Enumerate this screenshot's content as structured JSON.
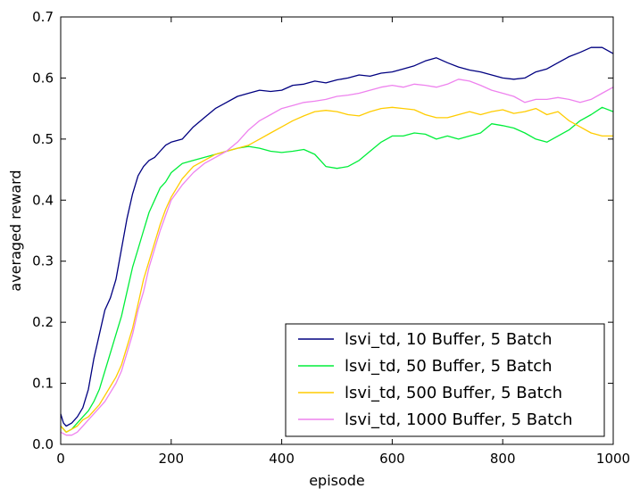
{
  "chart_data": {
    "type": "line",
    "xlabel": "episode",
    "ylabel": "averaged reward",
    "xlim": [
      0,
      1000
    ],
    "ylim": [
      0,
      0.7
    ],
    "xticks": [
      0,
      200,
      400,
      600,
      800,
      1000
    ],
    "yticks": [
      0.0,
      0.1,
      0.2,
      0.3,
      0.4,
      0.5,
      0.6,
      0.7
    ],
    "xtick_labels": [
      "0",
      "200",
      "400",
      "600",
      "800",
      "1000"
    ],
    "ytick_labels": [
      "0.0",
      "0.1",
      "0.2",
      "0.3",
      "0.4",
      "0.5",
      "0.6",
      "0.7"
    ],
    "grid": false,
    "legend_position": "lower-right",
    "series": [
      {
        "name": "lsvi_td, 10 Buffer, 5 Batch",
        "color": "#000080",
        "x": [
          0,
          5,
          10,
          20,
          30,
          40,
          50,
          60,
          70,
          80,
          90,
          100,
          110,
          120,
          130,
          140,
          150,
          160,
          170,
          180,
          190,
          200,
          220,
          240,
          260,
          280,
          300,
          320,
          340,
          360,
          380,
          400,
          420,
          440,
          460,
          480,
          500,
          520,
          540,
          560,
          580,
          600,
          620,
          640,
          660,
          680,
          700,
          720,
          740,
          760,
          780,
          800,
          820,
          840,
          860,
          880,
          900,
          920,
          940,
          960,
          980,
          1000
        ],
        "y": [
          0.05,
          0.035,
          0.03,
          0.035,
          0.045,
          0.06,
          0.09,
          0.14,
          0.18,
          0.22,
          0.24,
          0.27,
          0.32,
          0.37,
          0.41,
          0.44,
          0.455,
          0.465,
          0.47,
          0.48,
          0.49,
          0.495,
          0.5,
          0.52,
          0.535,
          0.55,
          0.56,
          0.57,
          0.575,
          0.58,
          0.578,
          0.58,
          0.588,
          0.59,
          0.595,
          0.592,
          0.597,
          0.6,
          0.605,
          0.603,
          0.608,
          0.61,
          0.615,
          0.62,
          0.628,
          0.633,
          0.625,
          0.618,
          0.613,
          0.61,
          0.605,
          0.6,
          0.598,
          0.6,
          0.61,
          0.615,
          0.625,
          0.635,
          0.642,
          0.65,
          0.65,
          0.64
        ]
      },
      {
        "name": "lsvi_td, 50 Buffer, 5 Batch",
        "color": "#00ee3a",
        "x": [
          0,
          10,
          20,
          30,
          40,
          50,
          60,
          70,
          80,
          90,
          100,
          110,
          120,
          130,
          140,
          150,
          160,
          170,
          180,
          190,
          200,
          220,
          240,
          260,
          280,
          300,
          320,
          340,
          360,
          380,
          400,
          420,
          440,
          460,
          480,
          500,
          520,
          540,
          560,
          580,
          600,
          620,
          640,
          660,
          680,
          700,
          720,
          740,
          760,
          780,
          800,
          820,
          840,
          860,
          880,
          900,
          920,
          940,
          960,
          980,
          1000
        ],
        "y": [
          0.03,
          0.02,
          0.025,
          0.035,
          0.045,
          0.055,
          0.07,
          0.09,
          0.12,
          0.15,
          0.18,
          0.21,
          0.25,
          0.29,
          0.32,
          0.35,
          0.38,
          0.4,
          0.42,
          0.43,
          0.445,
          0.46,
          0.465,
          0.47,
          0.475,
          0.48,
          0.485,
          0.488,
          0.485,
          0.48,
          0.478,
          0.48,
          0.483,
          0.475,
          0.455,
          0.452,
          0.455,
          0.465,
          0.48,
          0.495,
          0.505,
          0.505,
          0.51,
          0.508,
          0.5,
          0.505,
          0.5,
          0.505,
          0.51,
          0.525,
          0.522,
          0.518,
          0.51,
          0.5,
          0.495,
          0.505,
          0.515,
          0.53,
          0.54,
          0.552,
          0.545
        ]
      },
      {
        "name": "lsvi_td, 500 Buffer, 5 Batch",
        "color": "#ffcc00",
        "x": [
          0,
          10,
          20,
          30,
          40,
          50,
          60,
          70,
          80,
          90,
          100,
          110,
          120,
          130,
          140,
          150,
          160,
          170,
          180,
          190,
          200,
          220,
          240,
          260,
          280,
          300,
          320,
          340,
          360,
          380,
          400,
          420,
          440,
          460,
          480,
          500,
          520,
          540,
          560,
          580,
          600,
          620,
          640,
          660,
          680,
          700,
          720,
          740,
          760,
          780,
          800,
          820,
          840,
          860,
          880,
          900,
          920,
          940,
          960,
          980,
          1000
        ],
        "y": [
          0.03,
          0.02,
          0.025,
          0.03,
          0.04,
          0.045,
          0.055,
          0.065,
          0.08,
          0.095,
          0.11,
          0.13,
          0.16,
          0.19,
          0.23,
          0.27,
          0.3,
          0.33,
          0.36,
          0.385,
          0.405,
          0.435,
          0.455,
          0.465,
          0.475,
          0.48,
          0.485,
          0.49,
          0.5,
          0.51,
          0.52,
          0.53,
          0.538,
          0.545,
          0.547,
          0.545,
          0.54,
          0.538,
          0.545,
          0.55,
          0.552,
          0.55,
          0.548,
          0.54,
          0.535,
          0.535,
          0.54,
          0.545,
          0.54,
          0.545,
          0.548,
          0.542,
          0.545,
          0.55,
          0.54,
          0.545,
          0.53,
          0.52,
          0.51,
          0.505,
          0.505
        ]
      },
      {
        "name": "lsvi_td, 1000 Buffer, 5 Batch",
        "color": "#ee82ee",
        "x": [
          0,
          10,
          20,
          30,
          40,
          50,
          60,
          70,
          80,
          90,
          100,
          110,
          120,
          130,
          140,
          150,
          160,
          170,
          180,
          190,
          200,
          220,
          240,
          260,
          280,
          300,
          320,
          340,
          360,
          380,
          400,
          420,
          440,
          460,
          480,
          500,
          520,
          540,
          560,
          580,
          600,
          620,
          640,
          660,
          680,
          700,
          720,
          740,
          760,
          780,
          800,
          820,
          840,
          860,
          880,
          900,
          920,
          940,
          960,
          980,
          1000
        ],
        "y": [
          0.02,
          0.015,
          0.015,
          0.02,
          0.03,
          0.04,
          0.05,
          0.06,
          0.07,
          0.085,
          0.1,
          0.12,
          0.15,
          0.18,
          0.22,
          0.25,
          0.29,
          0.32,
          0.35,
          0.375,
          0.4,
          0.425,
          0.445,
          0.46,
          0.47,
          0.48,
          0.495,
          0.515,
          0.53,
          0.54,
          0.55,
          0.555,
          0.56,
          0.562,
          0.565,
          0.57,
          0.572,
          0.575,
          0.58,
          0.585,
          0.588,
          0.585,
          0.59,
          0.588,
          0.585,
          0.59,
          0.598,
          0.595,
          0.588,
          0.58,
          0.575,
          0.57,
          0.56,
          0.565,
          0.565,
          0.568,
          0.565,
          0.56,
          0.565,
          0.575,
          0.585
        ]
      }
    ]
  }
}
